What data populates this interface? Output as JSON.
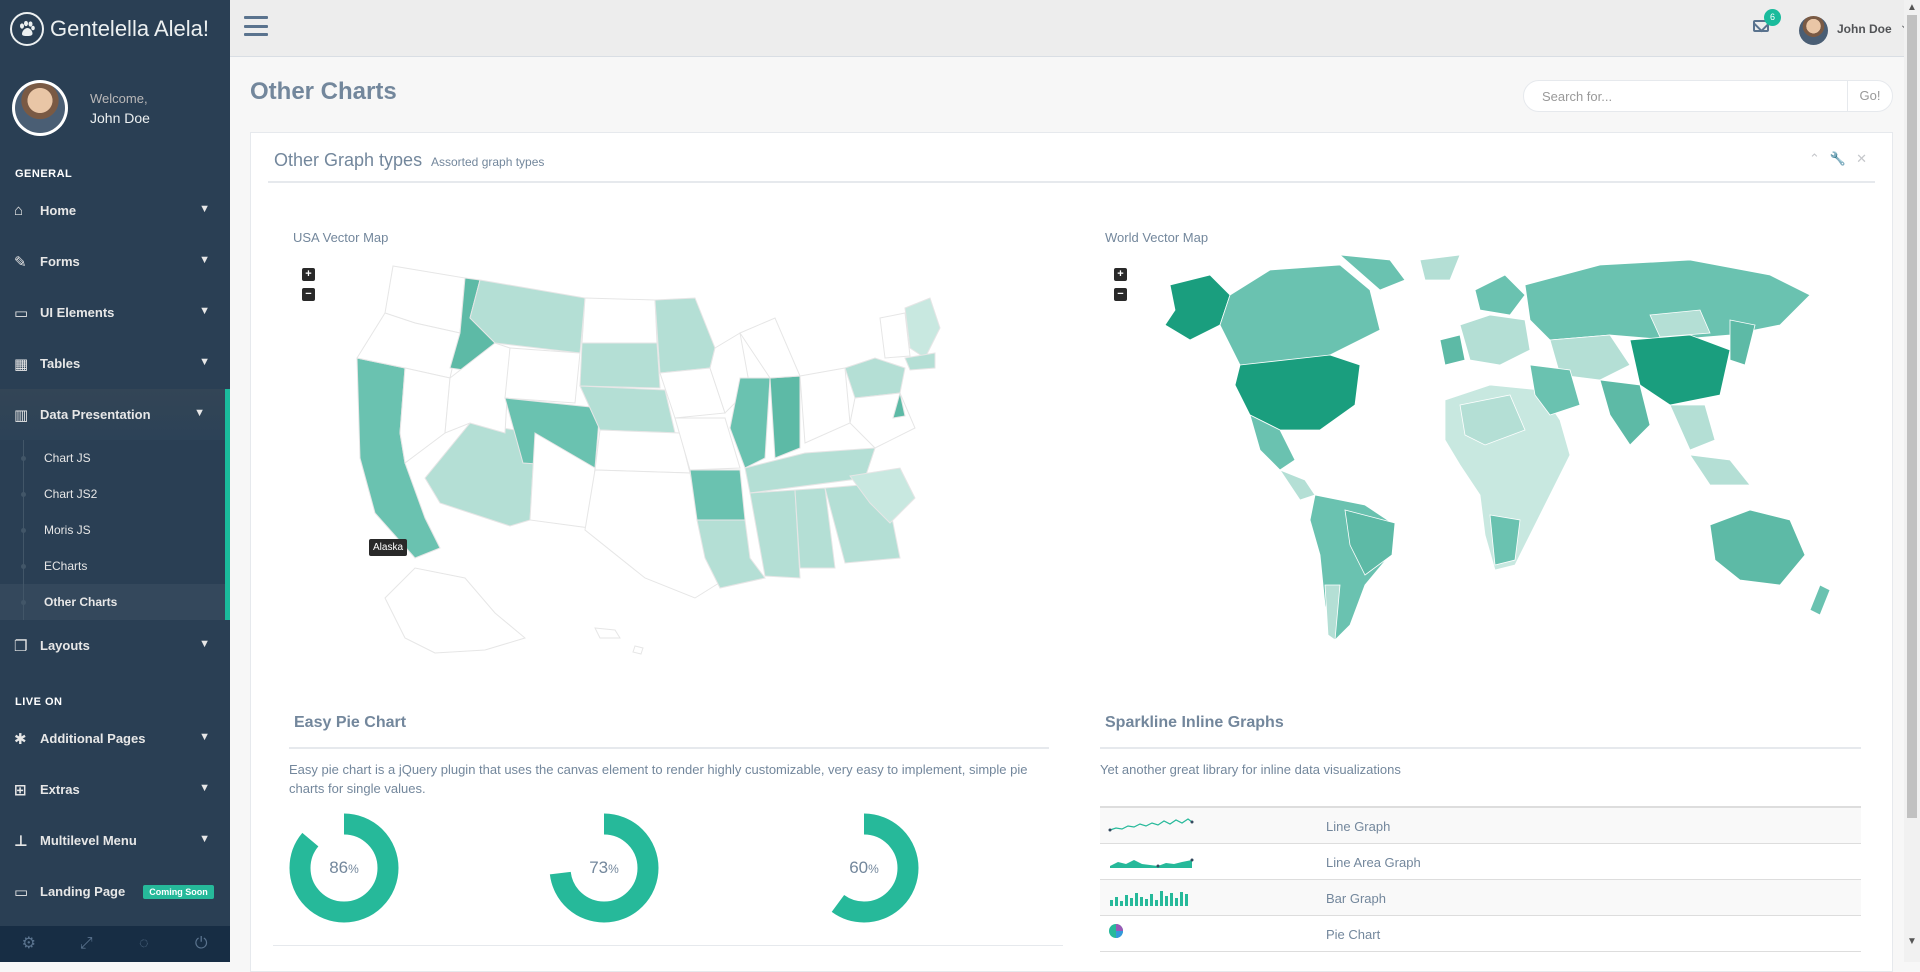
{
  "brand": {
    "name": "Gentelella Alela!"
  },
  "profile": {
    "welcome": "Welcome,",
    "name": "John Doe"
  },
  "sidebar": {
    "section_general": "GENERAL",
    "section_live": "LIVE ON",
    "items": [
      {
        "label": "Home",
        "icon": "home-icon"
      },
      {
        "label": "Forms",
        "icon": "edit-icon"
      },
      {
        "label": "UI Elements",
        "icon": "desktop-icon"
      },
      {
        "label": "Tables",
        "icon": "table-icon"
      },
      {
        "label": "Data Presentation",
        "icon": "bar-chart-icon"
      },
      {
        "label": "Layouts",
        "icon": "clone-icon"
      }
    ],
    "sub_items": [
      "Chart JS",
      "Chart JS2",
      "Moris JS",
      "ECharts",
      "Other Charts"
    ],
    "live_items": [
      {
        "label": "Additional Pages",
        "icon": "bug-icon"
      },
      {
        "label": "Extras",
        "icon": "windows-icon"
      },
      {
        "label": "Multilevel Menu",
        "icon": "sitemap-icon"
      },
      {
        "label": "Landing Page",
        "icon": "laptop-icon"
      }
    ],
    "coming_soon": "Coming Soon"
  },
  "topnav": {
    "notifications": "6",
    "user": "John Doe"
  },
  "page": {
    "title": "Other Charts"
  },
  "search": {
    "placeholder": "Search for...",
    "go": "Go!"
  },
  "panel": {
    "title": "Other Graph types",
    "subtitle": "Assorted graph types"
  },
  "maps": {
    "usa_label": "USA Vector Map",
    "world_label": "World Vector Map",
    "tooltip": "Alaska",
    "zoom_in": "+",
    "zoom_out": "−"
  },
  "easy_pie": {
    "title": "Easy Pie Chart",
    "description": "Easy pie chart is a jQuery plugin that uses the canvas element to render highly customizable, very easy to implement, simple pie charts for single values.",
    "charts": [
      {
        "value": "86",
        "unit": "%",
        "percent": 86
      },
      {
        "value": "73",
        "unit": "%",
        "percent": 73
      },
      {
        "value": "60",
        "unit": "%",
        "percent": 60
      }
    ],
    "color": "#26B99A"
  },
  "sparkline": {
    "title": "Sparkline Inline Graphs",
    "description": "Yet another great library for inline data visualizations",
    "rows": [
      "Line Graph",
      "Line Area Graph",
      "Bar Graph",
      "Pie Chart"
    ]
  },
  "colors": {
    "sidebar": "#2A3F54",
    "accent": "#1ABB9C",
    "green": "#26B99A"
  }
}
